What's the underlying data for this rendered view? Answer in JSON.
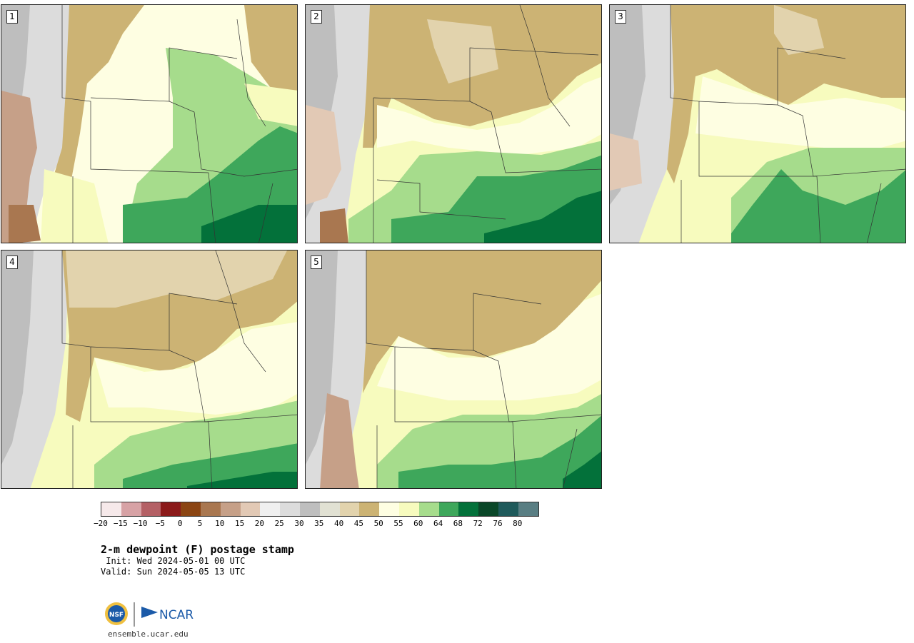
{
  "panels": [
    {
      "label": "1"
    },
    {
      "label": "2"
    },
    {
      "label": "3"
    },
    {
      "label": "4"
    },
    {
      "label": "5"
    }
  ],
  "colorbar": {
    "colors": [
      "#f6e9ea",
      "#d7a2a5",
      "#b46065",
      "#8b1a1a",
      "#8b4513",
      "#a97750",
      "#c6a088",
      "#e2c9b5",
      "#f0f0f0",
      "#dcdcdc",
      "#bebebe",
      "#e1e1d3",
      "#e2d3ad",
      "#ccb374",
      "#fefee2",
      "#f7fbbe",
      "#a6dc8c",
      "#3ea75b",
      "#03713a",
      "#0a4728",
      "#1f5a5b",
      "#597e83"
    ],
    "tick_labels": [
      "−20",
      "−15",
      "−10",
      "−5",
      "0",
      "5",
      "10",
      "15",
      "20",
      "25",
      "30",
      "35",
      "40",
      "45",
      "50",
      "55",
      "60",
      "64",
      "68",
      "72",
      "76",
      "80"
    ]
  },
  "title": "2-m dewpoint (F) postage stamp",
  "init": " Init: Wed 2024-05-01 00 UTC",
  "valid": "Valid: Sun 2024-05-05 13 UTC",
  "logos": {
    "nsf": "NSF",
    "ncar": "NCAR"
  },
  "url": "ensemble.ucar.edu"
}
